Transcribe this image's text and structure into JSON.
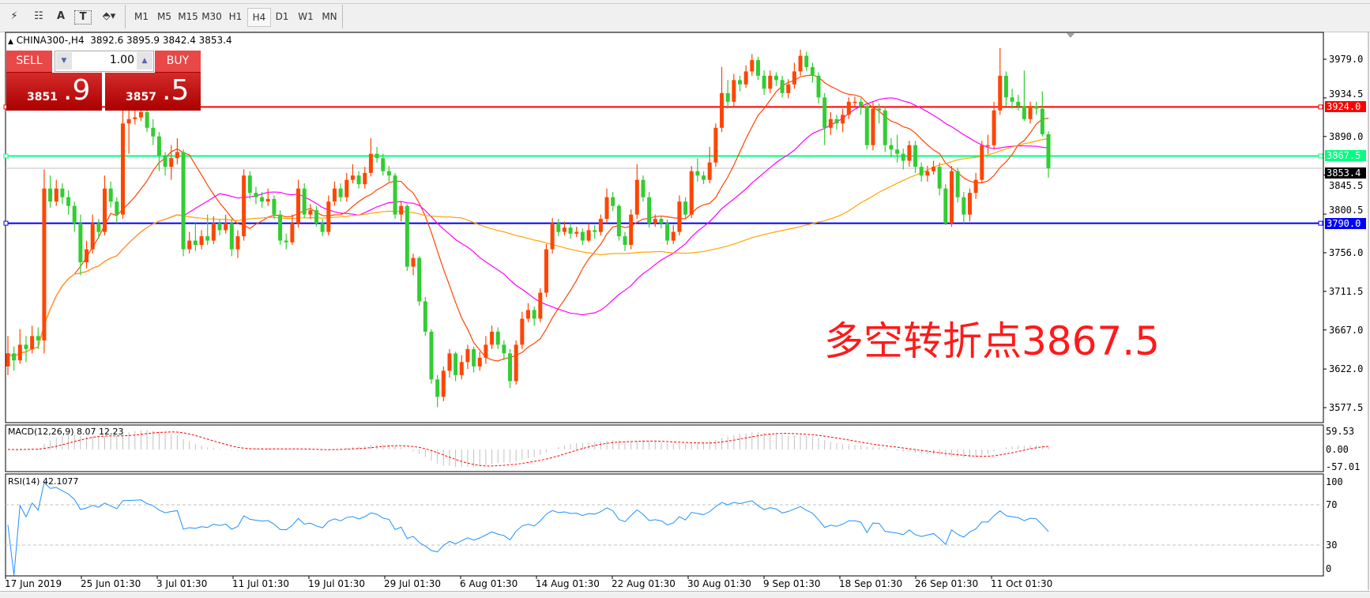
{
  "toolbar": {
    "tools": [
      {
        "name": "elliott-wave-icon",
        "glyph": "⚡"
      },
      {
        "name": "fibonacci-icon",
        "glyph": "☷"
      },
      {
        "name": "text-icon",
        "glyph": "A"
      },
      {
        "name": "text-label-icon",
        "glyph": "T"
      },
      {
        "name": "arrows-icon",
        "glyph": "⬘▾"
      }
    ],
    "timeframes": [
      "M1",
      "M5",
      "M15",
      "M30",
      "H1",
      "H4",
      "D1",
      "W1",
      "MN"
    ],
    "selected_timeframe": "H4"
  },
  "header": {
    "arrow": "▲",
    "symbol": "CHINA300-,H4",
    "ohlc": "3892.6 3895.9 3842.4 3853.4"
  },
  "trade_panel": {
    "sell_label": "SELL",
    "buy_label": "BUY",
    "lot": "1.00",
    "sell_price_small": "3851",
    "sell_price_big": ".9",
    "buy_price_small": "3857",
    "buy_price_big": ".5"
  },
  "annotation": "多空转折点3867.5",
  "price_axis": [
    "3979.0",
    "3934.5",
    "3890.0",
    "3845.5",
    "3800.5",
    "3756.0",
    "3711.5",
    "3667.0",
    "3622.0",
    "3577.5"
  ],
  "levels": [
    {
      "label": "3924.0",
      "value": 3924.0,
      "color": "#ff0000",
      "text_color": "#ffffff"
    },
    {
      "label": "3867.5",
      "value": 3867.5,
      "color": "#00ff7f",
      "text_color": "#ffffff"
    },
    {
      "label": "3853.4",
      "value": 3853.4,
      "color": "#000000",
      "text_color": "#ffffff"
    },
    {
      "label": "3790.0",
      "value": 3790.0,
      "color": "#0000ff",
      "text_color": "#ffffff"
    }
  ],
  "macd": {
    "label": "MACD(12,26,9) 8.07 12.23",
    "axis": [
      "59.53",
      "0.00",
      "-57.01"
    ]
  },
  "rsi": {
    "label": "RSI(14) 42.1077",
    "axis": [
      "100",
      "70",
      "30",
      "0"
    ]
  },
  "dates": [
    "17 Jun 2019",
    "25 Jun 01:30",
    "3 Jul 01:30",
    "11 Jul 01:30",
    "19 Jul 01:30",
    "29 Jul 01:30",
    "6 Aug 01:30",
    "14 Aug 01:30",
    "22 Aug 01:30",
    "30 Aug 01:30",
    "9 Sep 01:30",
    "18 Sep 01:30",
    "26 Sep 01:30",
    "11 Oct 01:30"
  ],
  "chart_data": {
    "type": "candlestick",
    "symbol": "CHINA300-",
    "timeframe": "H4",
    "ylim": [
      3577.5,
      3979.0
    ],
    "colors": {
      "up": "#ff4500",
      "down": "#32cd32",
      "ma_fast": "#ff4500",
      "ma_mid": "#ff00ff",
      "ma_slow": "#ffa500",
      "rsi": "#1e90ff",
      "macd_signal": "#ff0000",
      "macd_hist": "#c0c0c0"
    },
    "candles_ohlc": [
      [
        3625,
        3660,
        3615,
        3640
      ],
      [
        3640,
        3648,
        3620,
        3632
      ],
      [
        3632,
        3668,
        3628,
        3650
      ],
      [
        3650,
        3660,
        3630,
        3645
      ],
      [
        3645,
        3672,
        3640,
        3660
      ],
      [
        3660,
        3670,
        3645,
        3655
      ],
      [
        3655,
        3852,
        3640,
        3830
      ],
      [
        3830,
        3845,
        3808,
        3815
      ],
      [
        3815,
        3840,
        3810,
        3830
      ],
      [
        3830,
        3836,
        3812,
        3820
      ],
      [
        3820,
        3828,
        3800,
        3810
      ],
      [
        3810,
        3815,
        3780,
        3790
      ],
      [
        3790,
        3800,
        3730,
        3745
      ],
      [
        3745,
        3770,
        3738,
        3760
      ],
      [
        3760,
        3800,
        3755,
        3790
      ],
      [
        3790,
        3795,
        3772,
        3780
      ],
      [
        3780,
        3845,
        3776,
        3830
      ],
      [
        3830,
        3838,
        3808,
        3815
      ],
      [
        3815,
        3820,
        3790,
        3800
      ],
      [
        3800,
        3925,
        3795,
        3905
      ],
      [
        3905,
        3920,
        3870,
        3910
      ],
      [
        3910,
        3924,
        3904,
        3912
      ],
      [
        3912,
        3928,
        3908,
        3918
      ],
      [
        3918,
        3922,
        3895,
        3900
      ],
      [
        3900,
        3910,
        3880,
        3890
      ],
      [
        3890,
        3895,
        3850,
        3868
      ],
      [
        3868,
        3872,
        3845,
        3855
      ],
      [
        3855,
        3880,
        3840,
        3865
      ],
      [
        3865,
        3888,
        3858,
        3872
      ],
      [
        3872,
        3875,
        3752,
        3760
      ],
      [
        3760,
        3780,
        3755,
        3770
      ],
      [
        3770,
        3790,
        3758,
        3765
      ],
      [
        3765,
        3782,
        3760,
        3775
      ],
      [
        3775,
        3800,
        3765,
        3770
      ],
      [
        3770,
        3798,
        3766,
        3790
      ],
      [
        3790,
        3794,
        3776,
        3782
      ],
      [
        3782,
        3800,
        3778,
        3790
      ],
      [
        3790,
        3795,
        3752,
        3760
      ],
      [
        3760,
        3782,
        3750,
        3775
      ],
      [
        3775,
        3852,
        3770,
        3845
      ],
      [
        3845,
        3850,
        3818,
        3825
      ],
      [
        3825,
        3832,
        3812,
        3820
      ],
      [
        3820,
        3826,
        3808,
        3815
      ],
      [
        3815,
        3830,
        3810,
        3818
      ],
      [
        3818,
        3822,
        3795,
        3800
      ],
      [
        3800,
        3805,
        3765,
        3770
      ],
      [
        3770,
        3778,
        3760,
        3768
      ],
      [
        3768,
        3800,
        3765,
        3790
      ],
      [
        3790,
        3840,
        3785,
        3830
      ],
      [
        3830,
        3836,
        3796,
        3800
      ],
      [
        3800,
        3812,
        3795,
        3805
      ],
      [
        3805,
        3810,
        3786,
        3790
      ],
      [
        3790,
        3795,
        3775,
        3780
      ],
      [
        3780,
        3822,
        3776,
        3815
      ],
      [
        3815,
        3838,
        3810,
        3830
      ],
      [
        3830,
        3836,
        3815,
        3820
      ],
      [
        3820,
        3848,
        3815,
        3840
      ],
      [
        3840,
        3858,
        3836,
        3845
      ],
      [
        3845,
        3850,
        3830,
        3835
      ],
      [
        3835,
        3855,
        3830,
        3848
      ],
      [
        3848,
        3888,
        3844,
        3870
      ],
      [
        3870,
        3878,
        3860,
        3865
      ],
      [
        3865,
        3870,
        3845,
        3850
      ],
      [
        3850,
        3856,
        3838,
        3845
      ],
      [
        3845,
        3848,
        3795,
        3800
      ],
      [
        3800,
        3815,
        3792,
        3810
      ],
      [
        3810,
        3812,
        3735,
        3740
      ],
      [
        3740,
        3755,
        3730,
        3750
      ],
      [
        3750,
        3752,
        3695,
        3700
      ],
      [
        3700,
        3705,
        3660,
        3665
      ],
      [
        3665,
        3668,
        3605,
        3610
      ],
      [
        3610,
        3615,
        3578,
        3590
      ],
      [
        3590,
        3625,
        3585,
        3620
      ],
      [
        3620,
        3645,
        3612,
        3640
      ],
      [
        3640,
        3642,
        3608,
        3615
      ],
      [
        3615,
        3638,
        3610,
        3630
      ],
      [
        3630,
        3650,
        3622,
        3645
      ],
      [
        3645,
        3648,
        3618,
        3625
      ],
      [
        3625,
        3642,
        3620,
        3635
      ],
      [
        3635,
        3660,
        3628,
        3650
      ],
      [
        3650,
        3672,
        3645,
        3665
      ],
      [
        3665,
        3670,
        3645,
        3650
      ],
      [
        3650,
        3655,
        3632,
        3640
      ],
      [
        3640,
        3645,
        3600,
        3608
      ],
      [
        3608,
        3655,
        3604,
        3650
      ],
      [
        3650,
        3688,
        3645,
        3680
      ],
      [
        3680,
        3698,
        3676,
        3690
      ],
      [
        3690,
        3694,
        3672,
        3680
      ],
      [
        3680,
        3715,
        3676,
        3710
      ],
      [
        3710,
        3766,
        3705,
        3760
      ],
      [
        3760,
        3796,
        3755,
        3790
      ],
      [
        3790,
        3795,
        3775,
        3780
      ],
      [
        3780,
        3792,
        3776,
        3785
      ],
      [
        3785,
        3790,
        3772,
        3778
      ],
      [
        3778,
        3786,
        3774,
        3780
      ],
      [
        3780,
        3784,
        3765,
        3770
      ],
      [
        3770,
        3790,
        3768,
        3782
      ],
      [
        3782,
        3788,
        3772,
        3780
      ],
      [
        3780,
        3800,
        3776,
        3795
      ],
      [
        3795,
        3830,
        3790,
        3820
      ],
      [
        3820,
        3826,
        3804,
        3810
      ],
      [
        3810,
        3812,
        3770,
        3775
      ],
      [
        3775,
        3780,
        3758,
        3765
      ],
      [
        3765,
        3806,
        3760,
        3800
      ],
      [
        3800,
        3858,
        3795,
        3840
      ],
      [
        3840,
        3845,
        3815,
        3820
      ],
      [
        3820,
        3826,
        3785,
        3790
      ],
      [
        3790,
        3800,
        3786,
        3795
      ],
      [
        3795,
        3798,
        3784,
        3790
      ],
      [
        3790,
        3794,
        3765,
        3770
      ],
      [
        3770,
        3788,
        3766,
        3780
      ],
      [
        3780,
        3822,
        3776,
        3815
      ],
      [
        3815,
        3820,
        3795,
        3800
      ],
      [
        3800,
        3856,
        3796,
        3850
      ],
      [
        3850,
        3865,
        3838,
        3845
      ],
      [
        3845,
        3850,
        3835,
        3840
      ],
      [
        3840,
        3878,
        3836,
        3860
      ],
      [
        3860,
        3905,
        3855,
        3900
      ],
      [
        3900,
        3970,
        3895,
        3940
      ],
      [
        3940,
        3955,
        3922,
        3930
      ],
      [
        3930,
        3962,
        3925,
        3955
      ],
      [
        3955,
        3960,
        3942,
        3950
      ],
      [
        3950,
        3972,
        3946,
        3965
      ],
      [
        3965,
        3985,
        3960,
        3978
      ],
      [
        3978,
        3982,
        3955,
        3960
      ],
      [
        3960,
        3966,
        3938,
        3945
      ],
      [
        3945,
        3966,
        3940,
        3960
      ],
      [
        3960,
        3964,
        3948,
        3955
      ],
      [
        3955,
        3960,
        3935,
        3940
      ],
      [
        3940,
        3956,
        3934,
        3950
      ],
      [
        3950,
        3975,
        3945,
        3965
      ],
      [
        3965,
        3990,
        3960,
        3983
      ],
      [
        3983,
        3988,
        3965,
        3970
      ],
      [
        3970,
        3975,
        3952,
        3960
      ],
      [
        3960,
        3964,
        3928,
        3935
      ],
      [
        3935,
        3940,
        3880,
        3900
      ],
      [
        3900,
        3918,
        3892,
        3910
      ],
      [
        3910,
        3915,
        3898,
        3905
      ],
      [
        3905,
        3922,
        3895,
        3915
      ],
      [
        3915,
        3935,
        3910,
        3930
      ],
      [
        3930,
        3936,
        3924,
        3930
      ],
      [
        3930,
        3934,
        3915,
        3925
      ],
      [
        3925,
        3928,
        3875,
        3880
      ],
      [
        3880,
        3930,
        3874,
        3922
      ],
      [
        3922,
        3928,
        3905,
        3920
      ],
      [
        3920,
        3924,
        3872,
        3880
      ],
      [
        3880,
        3888,
        3866,
        3875
      ],
      [
        3875,
        3892,
        3860,
        3870
      ],
      [
        3870,
        3876,
        3852,
        3862
      ],
      [
        3862,
        3885,
        3855,
        3880
      ],
      [
        3880,
        3885,
        3848,
        3855
      ],
      [
        3855,
        3860,
        3838,
        3845
      ],
      [
        3845,
        3856,
        3838,
        3850
      ],
      [
        3850,
        3862,
        3846,
        3855
      ],
      [
        3855,
        3860,
        3822,
        3830
      ],
      [
        3830,
        3835,
        3788,
        3790
      ],
      [
        3790,
        3856,
        3786,
        3850
      ],
      [
        3850,
        3854,
        3814,
        3820
      ],
      [
        3820,
        3826,
        3790,
        3800
      ],
      [
        3800,
        3830,
        3792,
        3825
      ],
      [
        3825,
        3848,
        3818,
        3840
      ],
      [
        3840,
        3885,
        3836,
        3880
      ],
      [
        3880,
        3892,
        3870,
        3880
      ],
      [
        3880,
        3930,
        3875,
        3920
      ],
      [
        3920,
        3992,
        3915,
        3960
      ],
      [
        3960,
        3965,
        3925,
        3935
      ],
      [
        3935,
        3945,
        3922,
        3930
      ],
      [
        3930,
        3938,
        3920,
        3925
      ],
      [
        3925,
        3966,
        3908,
        3910
      ],
      [
        3910,
        3930,
        3905,
        3925
      ],
      [
        3925,
        3930,
        3915,
        3922
      ],
      [
        3922,
        3942,
        3890,
        3892.6
      ],
      [
        3892.6,
        3895.9,
        3842.4,
        3853.4
      ]
    ]
  }
}
